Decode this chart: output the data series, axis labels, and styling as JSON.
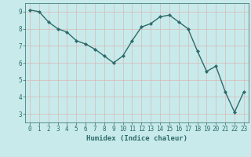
{
  "x": [
    0,
    1,
    2,
    3,
    4,
    5,
    6,
    7,
    8,
    9,
    10,
    11,
    12,
    13,
    14,
    15,
    16,
    17,
    18,
    19,
    20,
    21,
    22,
    23
  ],
  "y": [
    9.1,
    9.0,
    8.4,
    8.0,
    7.8,
    7.3,
    7.1,
    6.8,
    6.4,
    6.0,
    6.4,
    7.3,
    8.1,
    8.3,
    8.7,
    8.8,
    8.4,
    8.0,
    6.7,
    5.5,
    5.8,
    4.3,
    3.1,
    4.3
  ],
  "line_color": "#2e6b6b",
  "marker": "D",
  "marker_size": 2.0,
  "bg_color": "#c8eaea",
  "grid_color": "#d8b8b8",
  "tick_color": "#2e6b6b",
  "label_color": "#2e6b6b",
  "xlabel": "Humidex (Indice chaleur)",
  "ylim": [
    2.5,
    9.5
  ],
  "xlim": [
    -0.5,
    23.5
  ],
  "yticks": [
    3,
    4,
    5,
    6,
    7,
    8,
    9
  ],
  "xticks": [
    0,
    1,
    2,
    3,
    4,
    5,
    6,
    7,
    8,
    9,
    10,
    11,
    12,
    13,
    14,
    15,
    16,
    17,
    18,
    19,
    20,
    21,
    22,
    23
  ],
  "xlabel_fontsize": 6.5,
  "tick_fontsize": 5.5,
  "linewidth": 1.0
}
